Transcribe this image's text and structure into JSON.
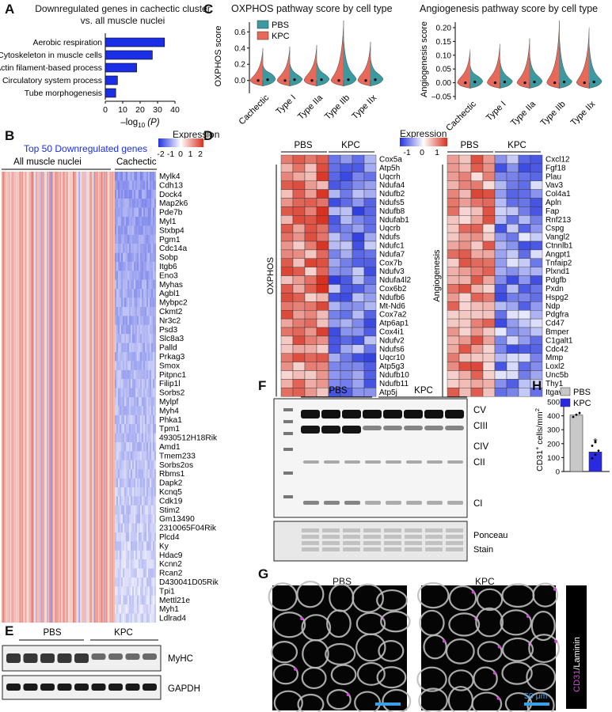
{
  "panels": {
    "A": {
      "label": "A",
      "title_line1": "Downregulated genes in cachectic cluster",
      "title_line2": "vs. all muscle nuclei",
      "xlabel_prefix": "–log",
      "xlabel_sub": "10",
      "xlabel_suffix": " (P)",
      "ticks": [
        "0",
        "10",
        "20",
        "30",
        "40"
      ],
      "chart_data": {
        "type": "bar",
        "orientation": "horizontal",
        "categories": [
          "Aerobic respiration",
          "Cytoskeleton in muscle cells",
          "Actin filament-based process",
          "Circulatory system process",
          "Tube morphogenesis"
        ],
        "values": [
          34,
          27,
          18,
          7,
          6
        ],
        "xlim": [
          0,
          40
        ],
        "color": "#1a2ee6"
      }
    },
    "B": {
      "label": "B",
      "title": "Top 50 Downregulated genes",
      "group1": "All muscle nuclei",
      "group2": "Cachectic",
      "legend_title": "Expression",
      "legend_ticks": [
        "-2",
        "-1",
        "0",
        "1",
        "2"
      ],
      "genes": [
        "Mylk4",
        "Cdh13",
        "Dock4",
        "Map2k6",
        "Pde7b",
        "Myl1",
        "Stxbp4",
        "Pgm1",
        "Cdc14a",
        "Sobp",
        "Itgb6",
        "Eno3",
        "Myhas",
        "Agbl1",
        "Mybpc2",
        "Ckmt2",
        "Nr3c2",
        "Psd3",
        "Slc8a3",
        "Palld",
        "Prkag3",
        "Smox",
        "Pitpnc1",
        "Filip1l",
        "Sorbs2",
        "Mylpf",
        "Myh4",
        "Phka1",
        "Tpm1",
        "4930512H18Rik",
        "Amd1",
        "Tmem233",
        "Sorbs2os",
        "Rbms1",
        "Dapk2",
        "Kcnq5",
        "Cdk19",
        "Stim2",
        "Gm13490",
        "2310065F04Rik",
        "Plcd4",
        "Ky",
        "Hdac9",
        "Kcnn2",
        "Rcan2",
        "D430041D05Rik",
        "Tpi1",
        "Mettl21e",
        "Myh1",
        "Ldlrad4"
      ]
    },
    "C": {
      "label": "C",
      "left_title": "OXPHOS pathway score by cell type",
      "right_title": "Angiogenesis pathway score by cell type",
      "left_ylabel": "OXPHOS score",
      "right_ylabel": "Angiogenesis score",
      "legend": [
        {
          "name": "PBS",
          "color": "#3a9aa0"
        },
        {
          "name": "KPC",
          "color": "#e8695a"
        }
      ],
      "categories": [
        "Cachectic",
        "Type I",
        "Type IIa",
        "Type IIb",
        "Type IIx"
      ],
      "left_ticks": [
        "0.6",
        "0.4",
        "0.2",
        "0.0"
      ],
      "right_ticks": [
        "0.20",
        "0.15",
        "0.10",
        "0.05",
        "0.00",
        "–0.05"
      ],
      "chart_data": [
        {
          "type": "violin",
          "title": "OXPHOS pathway score by cell type",
          "ylabel": "OXPHOS score",
          "ylim": [
            -0.12,
            0.72
          ],
          "categories": [
            "Cachectic",
            "Type I",
            "Type IIa",
            "Type IIb",
            "Type IIx"
          ],
          "series": [
            {
              "name": "PBS",
              "medians": [
                -0.02,
                0.0,
                0.02,
                0.02,
                0.02
              ]
            },
            {
              "name": "KPC",
              "medians": [
                -0.03,
                -0.02,
                -0.01,
                -0.01,
                -0.01
              ]
            }
          ]
        },
        {
          "type": "violin",
          "title": "Angiogenesis pathway score by cell type",
          "ylabel": "Angiogenesis score",
          "ylim": [
            -0.05,
            0.22
          ],
          "categories": [
            "Cachectic",
            "Type I",
            "Type IIa",
            "Type IIb",
            "Type IIx"
          ],
          "series": [
            {
              "name": "PBS",
              "medians": [
                0.0,
                0.0,
                0.0,
                0.0,
                0.0
              ]
            },
            {
              "name": "KPC",
              "medians": [
                0.0,
                0.0,
                0.0,
                0.0,
                0.0
              ]
            }
          ]
        }
      ]
    },
    "D": {
      "label": "D",
      "legend_title": "Expression",
      "legend_ticks": [
        "-1",
        "0",
        "1"
      ],
      "group1": "PBS",
      "group2": "KPC",
      "left_side": "OXPHOS",
      "right_side": "Angiogenesis",
      "oxphos_genes": [
        "Cox5a",
        "Atp5h",
        "Uqcrh",
        "Ndufa4",
        "Ndufb2",
        "Ndufs5",
        "Ndufb8",
        "Ndufab1",
        "Uqcrb",
        "Ndufs",
        "Ndufc1",
        "Ndufa7",
        "Cox7b",
        "Ndufv3",
        "Ndufa4l2",
        "Cox6b2",
        "Ndufb6",
        "Mt-Nd6",
        "Cox7a2",
        "Atp6ap1",
        "Cox4i1",
        "Ndufv2",
        "Ndufs6",
        "Uqcr10",
        "Atp5g3",
        "Ndufb10",
        "Ndufb11",
        "Atp5j"
      ],
      "angio_genes": [
        "Cxcl12",
        "Fgf18",
        "Plau",
        "Vav3",
        "Col4a1",
        "Apln",
        "Fap",
        "Rnf213",
        "Cspg",
        "Vangl2",
        "Ctnnlb1",
        "Angpt1",
        "Tnfaip2",
        "Plxnd1",
        "Pdgfb",
        "Pxdn",
        "Hspg2",
        "Ndp",
        "Pdgfra",
        "Cd47",
        "Bmper",
        "C1galt1",
        "Cdc42",
        "Mmp",
        "Loxl2",
        "Unc5b",
        "Thy1",
        "Itgav"
      ]
    },
    "E": {
      "label": "E",
      "group1": "PBS",
      "group2": "KPC",
      "band1": "MyHC",
      "band2": "GAPDH"
    },
    "F": {
      "label": "F",
      "group1": "PBS",
      "group2": "KPC",
      "bands": [
        "CV",
        "CIII",
        "CIV",
        "CII",
        "CI"
      ],
      "stain_line1": "Ponceau",
      "stain_line2": "Stain"
    },
    "G": {
      "label": "G",
      "left_title": "PBS",
      "right_title": "KPC",
      "scale": "50 μm",
      "side_cd31": "CD31",
      "side_rest": "/Laminin"
    },
    "H": {
      "label": "H",
      "ylabel_main": "CD31",
      "ylabel_sup": "+",
      "ylabel_rest": " cells/mm",
      "ylabel_sup2": "2",
      "ticks": [
        "500",
        "400",
        "300",
        "200",
        "100",
        "0"
      ],
      "sig": "*",
      "chart_data": {
        "type": "bar",
        "categories": [
          "PBS",
          "KPC"
        ],
        "values": [
          405,
          140
        ],
        "ylim": [
          0,
          500
        ],
        "series": [
          {
            "name": "PBS",
            "color": "#c8c8c8"
          },
          {
            "name": "KPC",
            "color": "#2a2ae0"
          }
        ],
        "points": {
          "PBS": [
            392,
            408,
            420
          ],
          "KPC": [
            95,
            120,
            150,
            185,
            210
          ]
        }
      }
    }
  }
}
